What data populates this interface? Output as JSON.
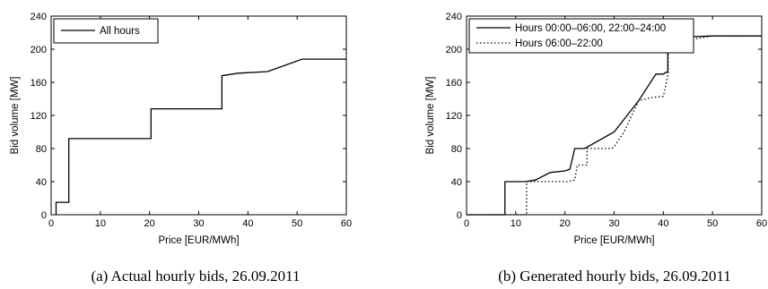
{
  "chart_data": [
    {
      "type": "line",
      "caption": "(a) Actual hourly bids, 26.09.2011",
      "xlabel": "Price [EUR/MWh]",
      "ylabel": "Bid volume [MW]",
      "xlim": [
        0,
        60
      ],
      "ylim": [
        0,
        240
      ],
      "xticks": [
        "0",
        "10",
        "20",
        "30",
        "40",
        "50",
        "60"
      ],
      "yticks": [
        "0",
        "40",
        "80",
        "120",
        "160",
        "200",
        "240"
      ],
      "grid": false,
      "legend_position": "top-left",
      "series": [
        {
          "name": "All hours",
          "style": "solid",
          "x": [
            1,
            1,
            3.6,
            3.6,
            20.3,
            20.3,
            34.7,
            34.7,
            38,
            44,
            51,
            60
          ],
          "y": [
            0,
            15,
            15,
            92,
            92,
            128,
            128,
            168,
            171,
            173,
            188,
            188
          ]
        }
      ]
    },
    {
      "type": "line",
      "caption": "(b) Generated hourly bids, 26.09.2011",
      "xlabel": "Price [EUR/MWh]",
      "ylabel": "Bid volume [MW]",
      "xlim": [
        0,
        60
      ],
      "ylim": [
        0,
        240
      ],
      "xticks": [
        "0",
        "10",
        "20",
        "30",
        "40",
        "50",
        "60"
      ],
      "yticks": [
        "0",
        "40",
        "80",
        "120",
        "160",
        "200",
        "240"
      ],
      "grid": false,
      "legend_position": "top-left",
      "series": [
        {
          "name": "Hours 00:00–06:00, 22:00–24:00",
          "style": "solid",
          "x": [
            0,
            7.8,
            7.8,
            12,
            14,
            17,
            20,
            21,
            22,
            22,
            24,
            30,
            35,
            38.5,
            40,
            40.5,
            40.9,
            40.9,
            41.5,
            45,
            50,
            60
          ],
          "y": [
            0,
            0,
            40,
            40,
            42,
            51,
            53,
            55,
            80,
            80,
            80,
            100,
            138,
            170,
            170,
            172,
            172,
            210,
            212,
            215,
            216,
            216
          ]
        },
        {
          "name": "Hours 06:00–22:00",
          "style": "dotted",
          "x": [
            0,
            12.2,
            12.2,
            20.5,
            22,
            22.5,
            24.5,
            24.5,
            29.5,
            30,
            32,
            35,
            38,
            40,
            41,
            41,
            41.8,
            46,
            50,
            60
          ],
          "y": [
            0,
            0,
            40,
            40,
            42,
            60,
            60,
            80,
            80,
            82,
            100,
            138,
            142,
            143,
            170,
            206,
            208,
            212,
            216,
            216
          ]
        }
      ]
    }
  ]
}
